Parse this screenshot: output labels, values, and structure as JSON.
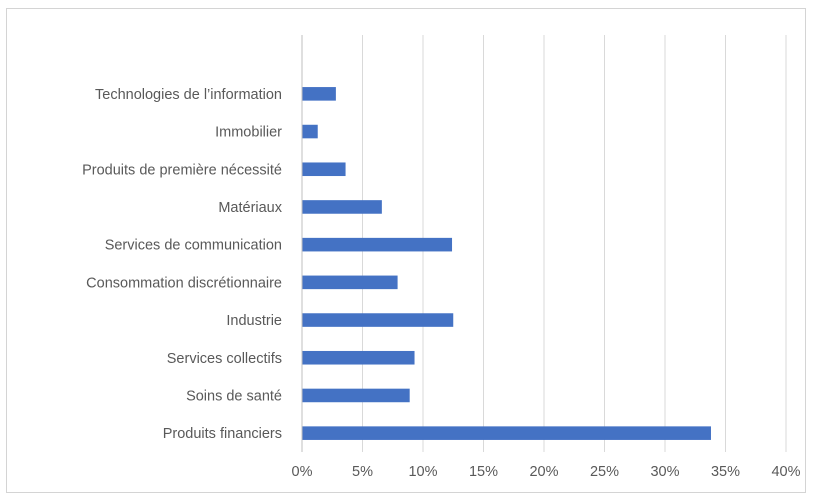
{
  "chart_data": {
    "type": "bar",
    "orientation": "horizontal",
    "title": "",
    "xlabel": "",
    "ylabel": "",
    "categories": [
      "Produits financiers",
      "Soins de santé",
      "Services collectifs",
      "Industrie",
      "Consommation discrétionnaire",
      "Services de communication",
      "Matériaux",
      "Produits de première nécessité",
      "Immobilier",
      "Technologies de l’information"
    ],
    "values": [
      33.8,
      8.9,
      9.3,
      12.5,
      7.9,
      12.4,
      6.6,
      3.6,
      1.3,
      2.8
    ],
    "xlim": [
      0,
      40
    ],
    "xticks": [
      "0%",
      "5%",
      "10%",
      "15%",
      "20%",
      "25%",
      "30%",
      "35%",
      "40%"
    ],
    "grid": "vertical",
    "legend": "none",
    "bar_color": "#4472c4",
    "grid_color": "#d9d9d9"
  }
}
